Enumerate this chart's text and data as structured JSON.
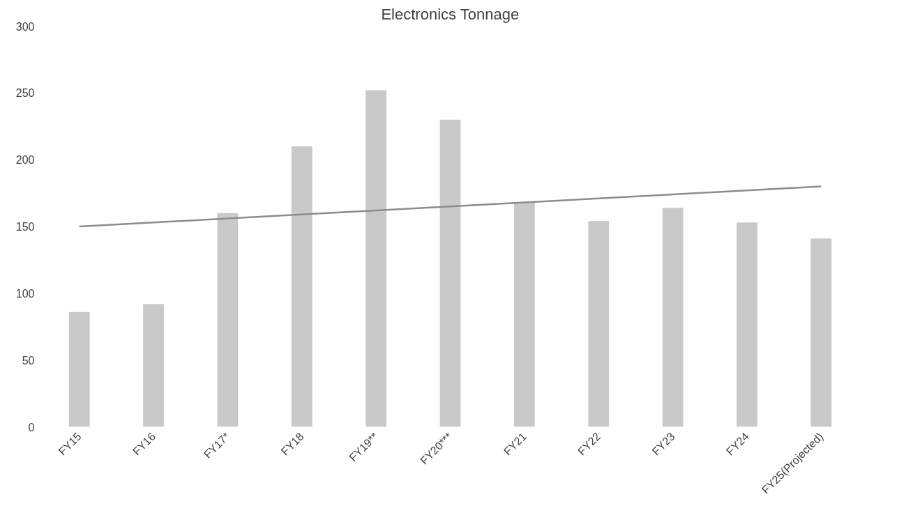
{
  "chart_data": {
    "type": "bar",
    "title": "Electronics Tonnage",
    "categories": [
      "FY15",
      "FY16",
      "FY17*",
      "FY18",
      "FY19**",
      "FY20***",
      "FY21",
      "FY22",
      "FY23",
      "FY24",
      "FY25(Projected)"
    ],
    "series": [
      {
        "color": "#c9c9c9",
        "values": [
          86,
          92,
          160,
          210,
          252,
          230,
          168,
          154,
          164,
          153,
          141
        ]
      },
      {
        "type": "line",
        "color": "#8c8c8c",
        "values": [
          150,
          153,
          156,
          159,
          162,
          165,
          168,
          171,
          174,
          177,
          180
        ]
      }
    ],
    "ylim": [
      0,
      300
    ],
    "yticks": [
      0,
      50,
      100,
      150,
      200,
      250,
      300
    ],
    "grid": false
  }
}
